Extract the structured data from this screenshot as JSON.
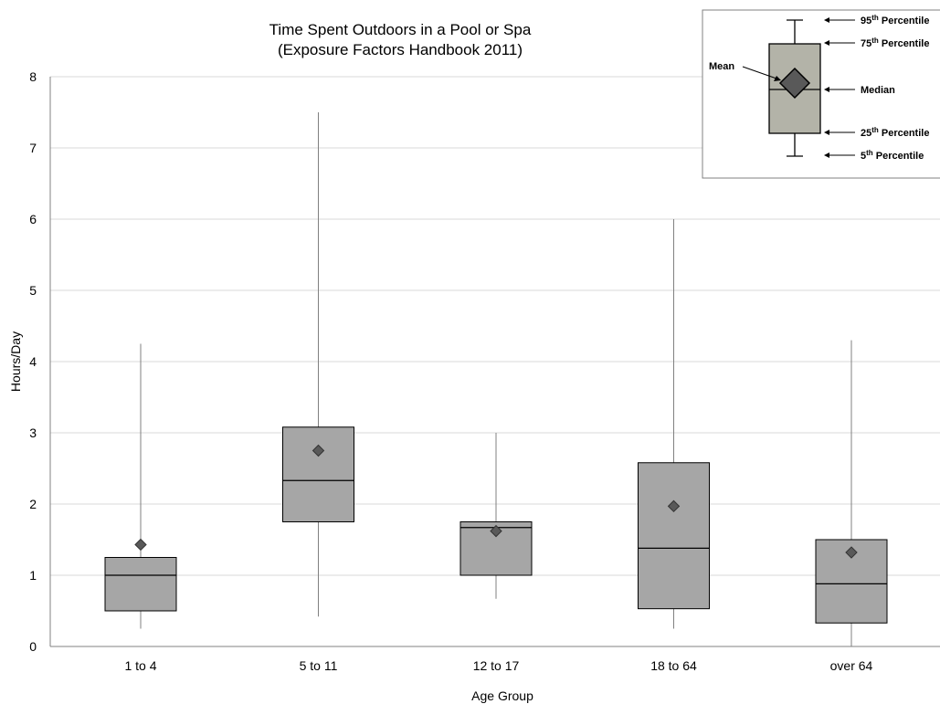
{
  "chart_data": {
    "type": "box",
    "title": "Time Spent Outdoors in a Pool or Spa",
    "subtitle": "(Exposure Factors Handbook 2011)",
    "xlabel": "Age Group",
    "ylabel": "Hours/Day",
    "ylim": [
      0,
      8
    ],
    "yticks": [
      0,
      1,
      2,
      3,
      4,
      5,
      6,
      7,
      8
    ],
    "grid": true,
    "categories": [
      "1 to 4",
      "5 to 11",
      "12 to 17",
      "18 to 64",
      "over 64"
    ],
    "p5": [
      0.25,
      0.42,
      0.67,
      0.25,
      0.0
    ],
    "p25": [
      0.5,
      1.75,
      1.0,
      0.53,
      0.33
    ],
    "median": [
      1.0,
      2.33,
      1.67,
      1.38,
      0.88
    ],
    "p75": [
      1.25,
      3.08,
      1.75,
      2.58,
      1.5
    ],
    "p95": [
      4.25,
      7.5,
      3.0,
      6.0,
      4.3
    ],
    "mean": [
      1.43,
      2.75,
      1.62,
      1.97,
      1.32
    ],
    "colors": {
      "box": "#a6a6a6",
      "mean_marker": "#595959",
      "grid": "#d9d9d9",
      "axis": "#808080"
    },
    "legend": {
      "position": "top-right",
      "items": {
        "p95": {
          "base": "95",
          "sup": "th",
          "text": " Percentile"
        },
        "p75": {
          "base": "75",
          "sup": "th",
          "text": " Percentile"
        },
        "median": {
          "text": "Median"
        },
        "p25": {
          "base": "25",
          "sup": "th",
          "text": " Percentile"
        },
        "p5": {
          "base": "5",
          "sup": "th",
          "text": " Percentile"
        },
        "mean": {
          "text": "Mean"
        }
      }
    }
  }
}
